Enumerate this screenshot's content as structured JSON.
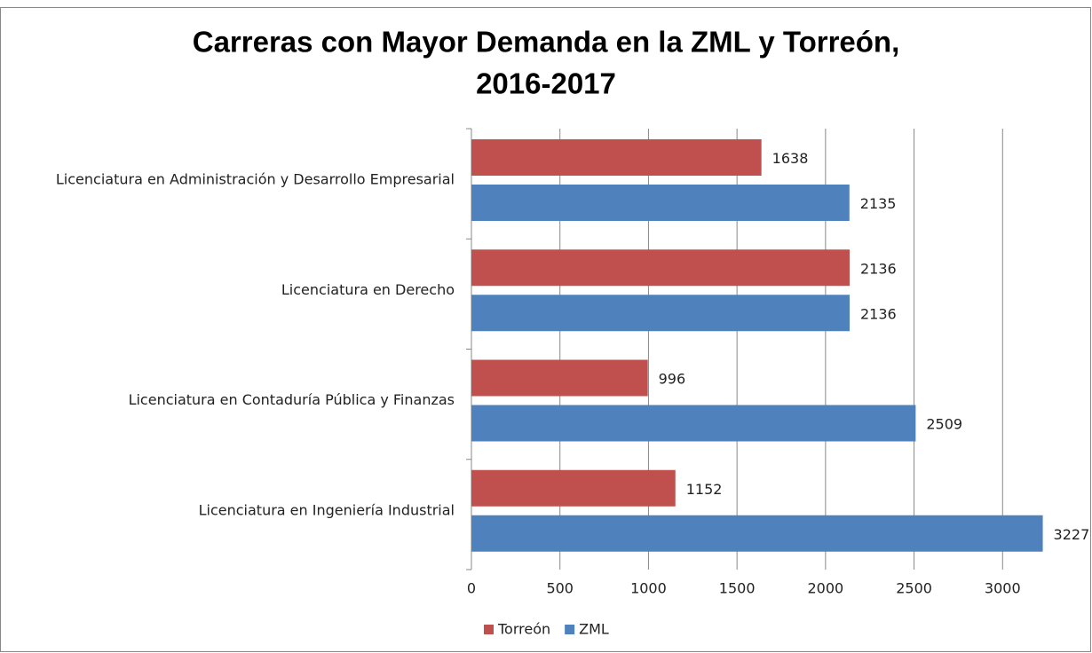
{
  "chart_data": {
    "type": "barh",
    "title": [
      "Carreras con Mayor Demanda en la ZML y Torreón,",
      "2016-2017"
    ],
    "categories": [
      "Licenciatura en Administración y Desarrollo Empresarial",
      "Licenciatura en Derecho",
      "Licenciatura en Contaduría Pública y Finanzas",
      "Licenciatura en Ingeniería Industrial"
    ],
    "series": [
      {
        "name": "Torreón",
        "color": "#c0504d",
        "values": [
          1638,
          2136,
          996,
          1152
        ]
      },
      {
        "name": "ZML",
        "color": "#4f81bd",
        "values": [
          2135,
          2136,
          2509,
          3227
        ]
      }
    ],
    "xlim": [
      0,
      3500
    ],
    "xticks": [
      0,
      500,
      1000,
      1500,
      2000,
      2500,
      3000
    ],
    "grid": true,
    "legend": "bottom"
  }
}
